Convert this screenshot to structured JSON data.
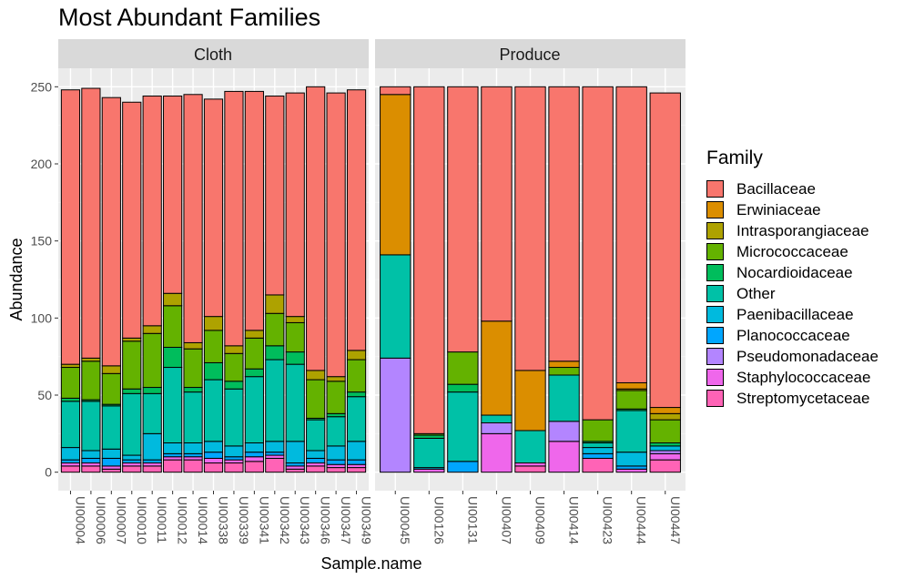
{
  "chart_data": {
    "type": "bar",
    "stacked": true,
    "title": "Most Abundant Families",
    "xlabel": "Sample.name",
    "ylabel": "Abundance",
    "ylim": [
      -12,
      262
    ],
    "yticks": [
      0,
      50,
      100,
      150,
      200,
      250
    ],
    "legend_title": "Family",
    "legend_position": "right",
    "grid": true,
    "families": [
      "Bacillaceae",
      "Erwiniaceae",
      "Intrasporangiaceae",
      "Micrococcaceae",
      "Nocardioidaceae",
      "Other",
      "Paenibacillaceae",
      "Planococcaceae",
      "Pseudomonadaceae",
      "Staphylococcaceae",
      "Streptomycetaceae"
    ],
    "colors": {
      "Bacillaceae": "#F8766D",
      "Erwiniaceae": "#DB8E00",
      "Intrasporangiaceae": "#AEA200",
      "Micrococcaceae": "#64B200",
      "Nocardioidaceae": "#00BD5C",
      "Other": "#00C1A7",
      "Paenibacillaceae": "#00BADE",
      "Planococcaceae": "#00A6FF",
      "Pseudomonadaceae": "#B385FF",
      "Staphylococcaceae": "#EF67EB",
      "Streptomycetaceae": "#FF63B6"
    },
    "panels": [
      {
        "name": "Cloth",
        "samples": [
          {
            "name": "UI00004",
            "values": {
              "Streptomycetaceae": 4,
              "Staphylococcaceae": 2,
              "Pseudomonadaceae": 0,
              "Planococcaceae": 2,
              "Paenibacillaceae": 8,
              "Other": 30,
              "Nocardioidaceae": 2,
              "Micrococcaceae": 20,
              "Intrasporangiaceae": 2,
              "Erwiniaceae": 0,
              "Bacillaceae": 178
            }
          },
          {
            "name": "UI00006",
            "values": {
              "Streptomycetaceae": 4,
              "Staphylococcaceae": 2,
              "Pseudomonadaceae": 0,
              "Planococcaceae": 3,
              "Paenibacillaceae": 5,
              "Other": 32,
              "Nocardioidaceae": 1,
              "Micrococcaceae": 25,
              "Intrasporangiaceae": 2,
              "Erwiniaceae": 0,
              "Bacillaceae": 175
            }
          },
          {
            "name": "UI00007",
            "values": {
              "Streptomycetaceae": 2,
              "Staphylococcaceae": 2,
              "Pseudomonadaceae": 0,
              "Planococcaceae": 5,
              "Paenibacillaceae": 6,
              "Other": 28,
              "Nocardioidaceae": 1,
              "Micrococcaceae": 20,
              "Intrasporangiaceae": 5,
              "Erwiniaceae": 0,
              "Bacillaceae": 174
            }
          },
          {
            "name": "UI00010",
            "values": {
              "Streptomycetaceae": 4,
              "Staphylococcaceae": 2,
              "Pseudomonadaceae": 0,
              "Planococcaceae": 2,
              "Paenibacillaceae": 3,
              "Other": 40,
              "Nocardioidaceae": 3,
              "Micrococcaceae": 31,
              "Intrasporangiaceae": 2,
              "Erwiniaceae": 0,
              "Bacillaceae": 153
            }
          },
          {
            "name": "UI00011",
            "values": {
              "Streptomycetaceae": 4,
              "Staphylococcaceae": 2,
              "Pseudomonadaceae": 0,
              "Planococcaceae": 2,
              "Paenibacillaceae": 17,
              "Other": 26,
              "Nocardioidaceae": 4,
              "Micrococcaceae": 35,
              "Intrasporangiaceae": 5,
              "Erwiniaceae": 0,
              "Bacillaceae": 149
            }
          },
          {
            "name": "UI00012",
            "values": {
              "Streptomycetaceae": 8,
              "Staphylococcaceae": 2,
              "Pseudomonadaceae": 0,
              "Planococcaceae": 2,
              "Paenibacillaceae": 7,
              "Other": 49,
              "Nocardioidaceae": 13,
              "Micrococcaceae": 27,
              "Intrasporangiaceae": 8,
              "Erwiniaceae": 0,
              "Bacillaceae": 128
            }
          },
          {
            "name": "UI00014",
            "values": {
              "Streptomycetaceae": 8,
              "Staphylococcaceae": 2,
              "Pseudomonadaceae": 0,
              "Planococcaceae": 2,
              "Paenibacillaceae": 7,
              "Other": 33,
              "Nocardioidaceae": 3,
              "Micrococcaceae": 25,
              "Intrasporangiaceae": 4,
              "Erwiniaceae": 0,
              "Bacillaceae": 161
            }
          },
          {
            "name": "UI00338",
            "values": {
              "Streptomycetaceae": 6,
              "Staphylococcaceae": 3,
              "Pseudomonadaceae": 0,
              "Planococcaceae": 4,
              "Paenibacillaceae": 7,
              "Other": 40,
              "Nocardioidaceae": 11,
              "Micrococcaceae": 21,
              "Intrasporangiaceae": 9,
              "Erwiniaceae": 0,
              "Bacillaceae": 141
            }
          },
          {
            "name": "UI00339",
            "values": {
              "Streptomycetaceae": 6,
              "Staphylococcaceae": 2,
              "Pseudomonadaceae": 0,
              "Planococcaceae": 2,
              "Paenibacillaceae": 7,
              "Other": 37,
              "Nocardioidaceae": 5,
              "Micrococcaceae": 18,
              "Intrasporangiaceae": 5,
              "Erwiniaceae": 0,
              "Bacillaceae": 165
            }
          },
          {
            "name": "UI00341",
            "values": {
              "Streptomycetaceae": 7,
              "Staphylococcaceae": 3,
              "Pseudomonadaceae": 0,
              "Planococcaceae": 3,
              "Paenibacillaceae": 6,
              "Other": 43,
              "Nocardioidaceae": 5,
              "Micrococcaceae": 20,
              "Intrasporangiaceae": 5,
              "Erwiniaceae": 0,
              "Bacillaceae": 155
            }
          },
          {
            "name": "UI00342",
            "values": {
              "Streptomycetaceae": 9,
              "Staphylococcaceae": 2,
              "Pseudomonadaceae": 0,
              "Planococcaceae": 2,
              "Paenibacillaceae": 7,
              "Other": 53,
              "Nocardioidaceae": 9,
              "Micrococcaceae": 21,
              "Intrasporangiaceae": 12,
              "Erwiniaceae": 0,
              "Bacillaceae": 129
            }
          },
          {
            "name": "UI00343",
            "values": {
              "Streptomycetaceae": 2,
              "Staphylococcaceae": 2,
              "Pseudomonadaceae": 0,
              "Planococcaceae": 2,
              "Paenibacillaceae": 14,
              "Other": 50,
              "Nocardioidaceae": 8,
              "Micrococcaceae": 19,
              "Intrasporangiaceae": 4,
              "Erwiniaceae": 0,
              "Bacillaceae": 145
            }
          },
          {
            "name": "UI00346",
            "values": {
              "Streptomycetaceae": 4,
              "Staphylococcaceae": 2,
              "Pseudomonadaceae": 0,
              "Planococcaceae": 3,
              "Paenibacillaceae": 5,
              "Other": 20,
              "Nocardioidaceae": 1,
              "Micrococcaceae": 25,
              "Intrasporangiaceae": 6,
              "Erwiniaceae": 0,
              "Bacillaceae": 184
            }
          },
          {
            "name": "UI00347",
            "values": {
              "Streptomycetaceae": 3,
              "Staphylococcaceae": 2,
              "Pseudomonadaceae": 0,
              "Planococcaceae": 3,
              "Paenibacillaceae": 9,
              "Other": 19,
              "Nocardioidaceae": 2,
              "Micrococcaceae": 21,
              "Intrasporangiaceae": 3,
              "Erwiniaceae": 0,
              "Bacillaceae": 184
            }
          },
          {
            "name": "UI00349",
            "values": {
              "Streptomycetaceae": 3,
              "Staphylococcaceae": 2,
              "Pseudomonadaceae": 0,
              "Planococcaceae": 3,
              "Paenibacillaceae": 12,
              "Other": 29,
              "Nocardioidaceae": 3,
              "Micrococcaceae": 21,
              "Intrasporangiaceae": 6,
              "Erwiniaceae": 0,
              "Bacillaceae": 169
            }
          }
        ]
      },
      {
        "name": "Produce",
        "samples": [
          {
            "name": "UI00045",
            "values": {
              "Streptomycetaceae": 0,
              "Staphylococcaceae": 0,
              "Pseudomonadaceae": 74,
              "Planococcaceae": 0,
              "Paenibacillaceae": 0,
              "Other": 67,
              "Nocardioidaceae": 0,
              "Micrococcaceae": 0,
              "Intrasporangiaceae": 0,
              "Erwiniaceae": 104,
              "Bacillaceae": 5
            }
          },
          {
            "name": "UI00126",
            "values": {
              "Streptomycetaceae": 0,
              "Staphylococcaceae": 2,
              "Pseudomonadaceae": 0,
              "Planococcaceae": 0,
              "Paenibacillaceae": 1,
              "Other": 19,
              "Nocardioidaceae": 2,
              "Micrococcaceae": 1,
              "Intrasporangiaceae": 0,
              "Erwiniaceae": 0,
              "Bacillaceae": 225
            }
          },
          {
            "name": "UI00131",
            "values": {
              "Streptomycetaceae": 0,
              "Staphylococcaceae": 0,
              "Pseudomonadaceae": 0,
              "Planococcaceae": 7,
              "Paenibacillaceae": 0,
              "Other": 45,
              "Nocardioidaceae": 5,
              "Micrococcaceae": 21,
              "Intrasporangiaceae": 0,
              "Erwiniaceae": 0,
              "Bacillaceae": 172
            }
          },
          {
            "name": "UI00407",
            "values": {
              "Streptomycetaceae": 0,
              "Staphylococcaceae": 25,
              "Pseudomonadaceae": 7,
              "Planococcaceae": 0,
              "Paenibacillaceae": 0,
              "Other": 5,
              "Nocardioidaceae": 0,
              "Micrococcaceae": 0,
              "Intrasporangiaceae": 0,
              "Erwiniaceae": 61,
              "Bacillaceae": 152
            }
          },
          {
            "name": "UI00409",
            "values": {
              "Streptomycetaceae": 4,
              "Staphylococcaceae": 2,
              "Pseudomonadaceae": 0,
              "Planococcaceae": 0,
              "Paenibacillaceae": 0,
              "Other": 21,
              "Nocardioidaceae": 0,
              "Micrococcaceae": 0,
              "Intrasporangiaceae": 0,
              "Erwiniaceae": 39,
              "Bacillaceae": 184
            }
          },
          {
            "name": "UI00414",
            "values": {
              "Streptomycetaceae": 0,
              "Staphylococcaceae": 20,
              "Pseudomonadaceae": 13,
              "Planococcaceae": 0,
              "Paenibacillaceae": 0,
              "Other": 30,
              "Nocardioidaceae": 0,
              "Micrococcaceae": 5,
              "Intrasporangiaceae": 0,
              "Erwiniaceae": 4,
              "Bacillaceae": 178
            }
          },
          {
            "name": "UI00423",
            "values": {
              "Streptomycetaceae": 9,
              "Staphylococcaceae": 0,
              "Pseudomonadaceae": 0,
              "Planococcaceae": 3,
              "Paenibacillaceae": 4,
              "Other": 3,
              "Nocardioidaceae": 1,
              "Micrococcaceae": 14,
              "Intrasporangiaceae": 0,
              "Erwiniaceae": 0,
              "Bacillaceae": 216
            }
          },
          {
            "name": "UI00444",
            "values": {
              "Streptomycetaceae": 0,
              "Staphylococcaceae": 2,
              "Pseudomonadaceae": 0,
              "Planococcaceae": 2,
              "Paenibacillaceae": 9,
              "Other": 27,
              "Nocardioidaceae": 1,
              "Micrococcaceae": 12,
              "Intrasporangiaceae": 1,
              "Erwiniaceae": 4,
              "Bacillaceae": 192
            }
          },
          {
            "name": "UI00447",
            "values": {
              "Streptomycetaceae": 8,
              "Staphylococcaceae": 4,
              "Pseudomonadaceae": 2,
              "Planococcaceae": 0,
              "Paenibacillaceae": 3,
              "Other": 0,
              "Nocardioidaceae": 2,
              "Micrococcaceae": 15,
              "Intrasporangiaceae": 4,
              "Erwiniaceae": 4,
              "Bacillaceae": 204
            }
          }
        ]
      }
    ]
  }
}
